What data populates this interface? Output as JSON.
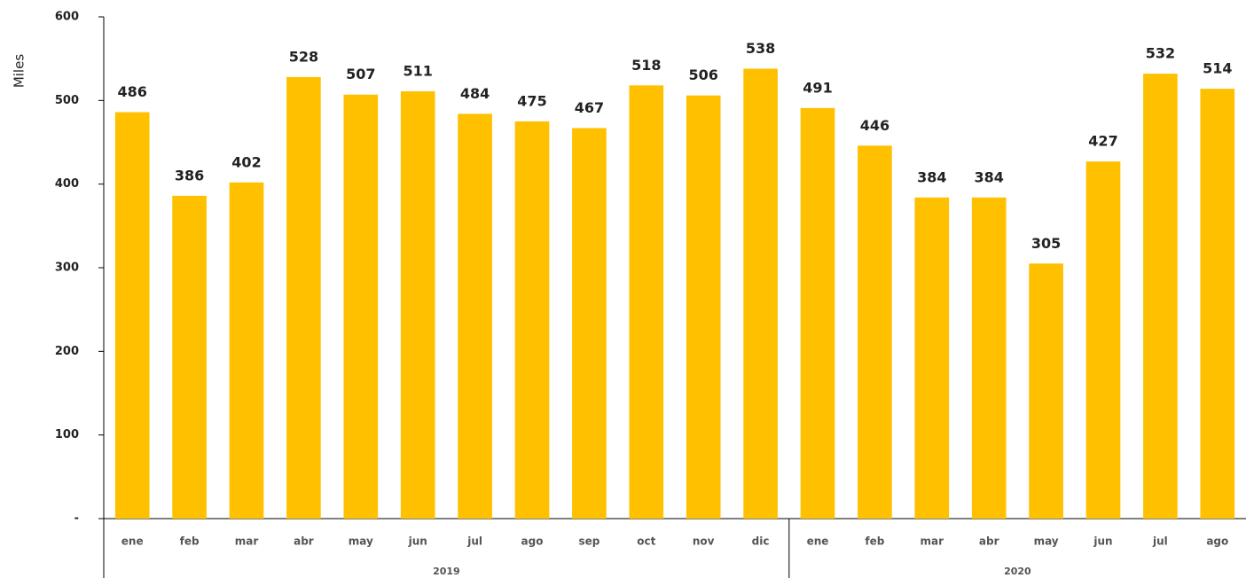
{
  "chart_data": {
    "type": "bar",
    "y_label": "Miles",
    "categories": [
      "ene",
      "feb",
      "mar",
      "abr",
      "may",
      "jun",
      "jul",
      "ago",
      "sep",
      "oct",
      "nov",
      "dic",
      "ene",
      "feb",
      "mar",
      "abr",
      "may",
      "jun",
      "jul",
      "ago"
    ],
    "values": [
      486,
      386,
      402,
      528,
      507,
      511,
      484,
      475,
      467,
      518,
      506,
      538,
      491,
      446,
      384,
      384,
      305,
      427,
      532,
      514
    ],
    "x_groups": [
      {
        "label": "2019",
        "size": 12
      },
      {
        "label": "2020",
        "size": 8
      }
    ],
    "color": "#ffc000",
    "ylim": [
      0,
      600
    ],
    "yticks": [
      {
        "value": 0,
        "label": "-"
      },
      100,
      200,
      300,
      400,
      500,
      600
    ],
    "grid": false
  }
}
